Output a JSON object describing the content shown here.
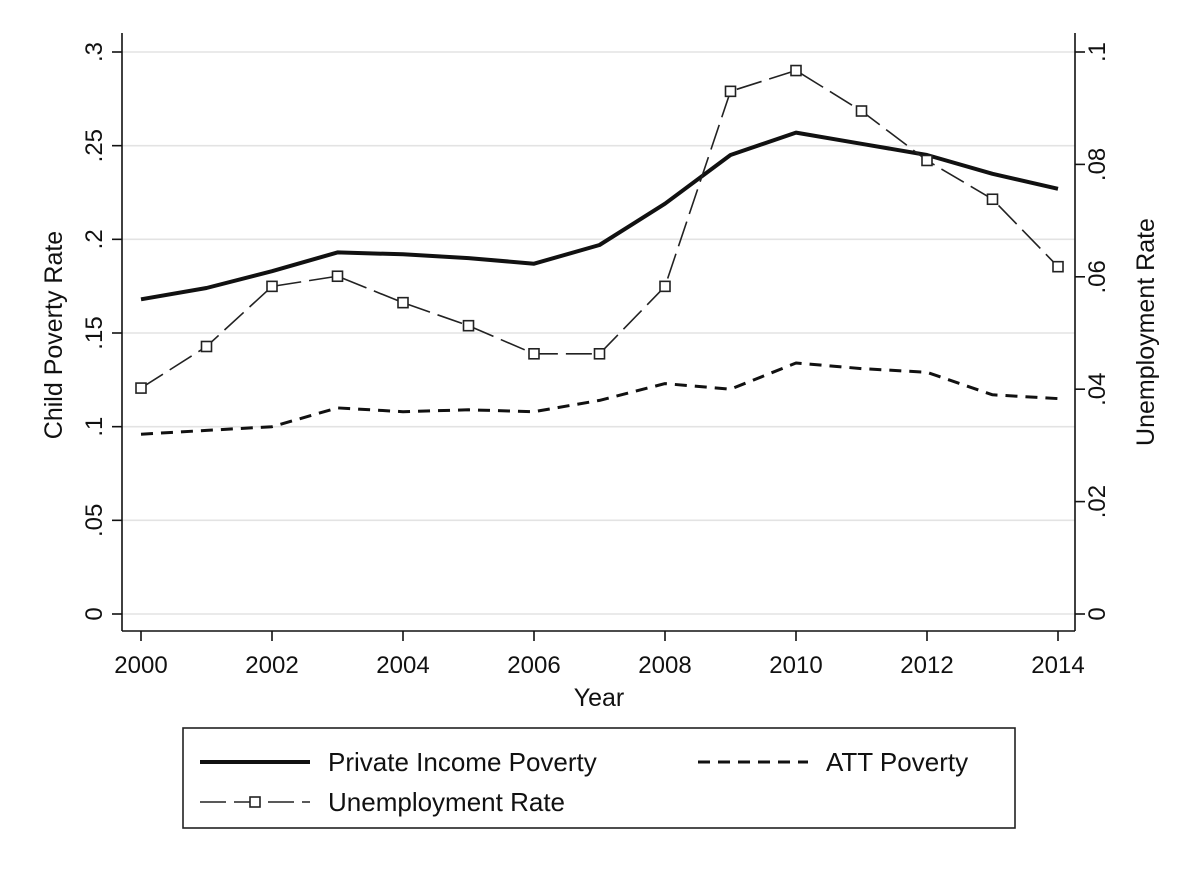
{
  "chart_data": {
    "type": "line",
    "title": "",
    "xlabel": "Year",
    "ylabel_left": "Child Poverty Rate",
    "ylabel_right": "Unemployment Rate",
    "x": [
      2000,
      2001,
      2002,
      2003,
      2004,
      2005,
      2006,
      2007,
      2008,
      2009,
      2010,
      2011,
      2012,
      2013,
      2014
    ],
    "xlim": [
      2000,
      2014
    ],
    "x_ticks": [
      2000,
      2002,
      2004,
      2006,
      2008,
      2010,
      2012,
      2014
    ],
    "x_tick_labels": [
      "2000",
      "2002",
      "2004",
      "2006",
      "2008",
      "2010",
      "2012",
      "2014"
    ],
    "ylim_left": [
      0,
      0.3
    ],
    "y_ticks_left": [
      0,
      0.05,
      0.1,
      0.15,
      0.2,
      0.25,
      0.3
    ],
    "y_tick_labels_left": [
      "0",
      ".05",
      ".1",
      ".15",
      ".2",
      ".25",
      ".3"
    ],
    "ylim_right": [
      0,
      0.1
    ],
    "y_ticks_right": [
      0,
      0.02,
      0.04,
      0.06,
      0.08,
      0.1
    ],
    "y_tick_labels_right": [
      "0",
      ".02",
      ".04",
      ".06",
      ".08",
      ".1"
    ],
    "grid": true,
    "legend_position": "bottom",
    "series": [
      {
        "name": "Private Income Poverty",
        "axis": "left",
        "style": "solid",
        "marker": "none",
        "color": "#111111",
        "values": [
          0.168,
          0.174,
          0.183,
          0.193,
          0.192,
          0.19,
          0.187,
          0.197,
          0.219,
          0.245,
          0.257,
          0.251,
          0.245,
          0.235,
          0.227
        ]
      },
      {
        "name": "ATT Poverty",
        "axis": "left",
        "style": "short-dash",
        "marker": "none",
        "color": "#111111",
        "values": [
          0.096,
          0.098,
          0.1,
          0.11,
          0.108,
          0.109,
          0.108,
          0.114,
          0.123,
          0.12,
          0.134,
          0.131,
          0.129,
          0.117,
          0.115
        ]
      },
      {
        "name": "Unemployment Rate",
        "axis": "right",
        "style": "long-dash",
        "marker": "hollow-square",
        "color": "#222222",
        "values": [
          0.0402,
          0.0476,
          0.0583,
          0.0601,
          0.0554,
          0.0513,
          0.0463,
          0.0463,
          0.0583,
          0.093,
          0.0967,
          0.0895,
          0.0807,
          0.0738,
          0.0618
        ]
      }
    ]
  }
}
